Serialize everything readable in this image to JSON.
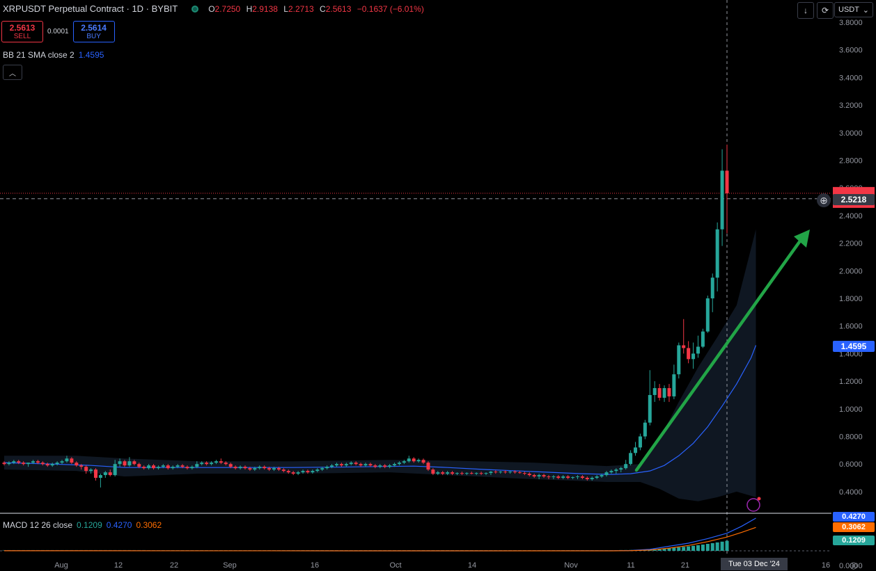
{
  "header": {
    "symbol": "XRPUSDT Perpetual Contract · 1D · BYBIT",
    "ohlc": {
      "o_key": "O",
      "o_val": "2.7250",
      "h_key": "H",
      "h_val": "2.9138",
      "l_key": "L",
      "l_val": "2.2713",
      "c_key": "C",
      "c_val": "2.5613",
      "change": "−0.1637 (−6.01%)"
    }
  },
  "trade": {
    "sell_price": "2.5613",
    "sell_label": "SELL",
    "spread": "0.0001",
    "buy_price": "2.5614",
    "buy_label": "BUY"
  },
  "indicators": {
    "bb_label": "BB 21 SMA close 2",
    "bb_value": "1.4595",
    "macd_label": "MACD 12 26 close",
    "macd_hist": "0.1209",
    "macd_line": "0.4270",
    "macd_signal": "0.3062"
  },
  "toolbar": {
    "currency": "USDT",
    "collapse_icon": "chevron-up-icon",
    "icons": [
      "arrow-down-icon",
      "sync-icon",
      "chevron-down-icon",
      "plus-circle-icon",
      "lightning-icon",
      "settings-icon"
    ]
  },
  "price_labels": {
    "crosshair": "2.5218",
    "bb_basis": "1.4595",
    "macd_line": "0.4270",
    "macd_signal": "0.3062",
    "macd_hist": "0.1209"
  },
  "crosshair_date": "Tue 03 Dec '24",
  "colors": {
    "up": "#26a69a",
    "down": "#f23645",
    "bb_basis": "#2962ff",
    "bb_fill": "#0f1722",
    "macd": "#2962ff",
    "signal": "#ff6d00",
    "arrow": "#22a547",
    "background": "#000000"
  },
  "chart_data": {
    "type": "candlestick",
    "symbol": "XRPUSDT",
    "interval": "1D",
    "y_ticks": [
      "3.8000",
      "3.6000",
      "3.4000",
      "3.2000",
      "3.0000",
      "2.8000",
      "2.6000",
      "2.4000",
      "2.2000",
      "2.0000",
      "1.8000",
      "1.6000",
      "1.4000",
      "1.2000",
      "1.0000",
      "0.8000",
      "0.6000",
      "0.4000"
    ],
    "x_ticks": [
      "Aug",
      "12",
      "22",
      "Sep",
      "16",
      "Oct",
      "14",
      "Nov",
      "11",
      "21",
      "16"
    ],
    "ylim": [
      0.32,
      3.82
    ],
    "x_start": "2024-07-26",
    "last_candle": {
      "date": "2024-12-03",
      "open": 2.725,
      "high": 2.9138,
      "low": 2.2713,
      "close": 2.5613
    },
    "candles": [
      [
        0.61,
        0.62,
        0.59,
        0.6
      ],
      [
        0.6,
        0.62,
        0.59,
        0.61
      ],
      [
        0.61,
        0.63,
        0.6,
        0.62
      ],
      [
        0.62,
        0.63,
        0.6,
        0.61
      ],
      [
        0.61,
        0.62,
        0.59,
        0.6
      ],
      [
        0.6,
        0.61,
        0.58,
        0.61
      ],
      [
        0.61,
        0.63,
        0.6,
        0.62
      ],
      [
        0.62,
        0.63,
        0.6,
        0.61
      ],
      [
        0.61,
        0.62,
        0.59,
        0.6
      ],
      [
        0.6,
        0.61,
        0.58,
        0.59
      ],
      [
        0.59,
        0.61,
        0.58,
        0.6
      ],
      [
        0.6,
        0.62,
        0.59,
        0.61
      ],
      [
        0.61,
        0.63,
        0.6,
        0.62
      ],
      [
        0.62,
        0.66,
        0.61,
        0.64
      ],
      [
        0.64,
        0.65,
        0.6,
        0.61
      ],
      [
        0.61,
        0.62,
        0.58,
        0.59
      ],
      [
        0.59,
        0.6,
        0.56,
        0.58
      ],
      [
        0.58,
        0.59,
        0.53,
        0.55
      ],
      [
        0.55,
        0.57,
        0.53,
        0.56
      ],
      [
        0.56,
        0.57,
        0.48,
        0.5
      ],
      [
        0.5,
        0.53,
        0.43,
        0.52
      ],
      [
        0.52,
        0.55,
        0.5,
        0.54
      ],
      [
        0.54,
        0.56,
        0.51,
        0.52
      ],
      [
        0.52,
        0.63,
        0.51,
        0.6
      ],
      [
        0.6,
        0.64,
        0.58,
        0.62
      ],
      [
        0.62,
        0.63,
        0.58,
        0.59
      ],
      [
        0.59,
        0.65,
        0.58,
        0.62
      ],
      [
        0.62,
        0.63,
        0.59,
        0.6
      ],
      [
        0.6,
        0.61,
        0.57,
        0.58
      ],
      [
        0.58,
        0.59,
        0.56,
        0.57
      ],
      [
        0.57,
        0.6,
        0.56,
        0.59
      ],
      [
        0.59,
        0.6,
        0.56,
        0.57
      ],
      [
        0.57,
        0.59,
        0.56,
        0.58
      ],
      [
        0.58,
        0.6,
        0.57,
        0.59
      ],
      [
        0.59,
        0.6,
        0.56,
        0.57
      ],
      [
        0.57,
        0.59,
        0.56,
        0.58
      ],
      [
        0.58,
        0.6,
        0.57,
        0.59
      ],
      [
        0.59,
        0.6,
        0.57,
        0.58
      ],
      [
        0.58,
        0.59,
        0.56,
        0.57
      ],
      [
        0.57,
        0.59,
        0.56,
        0.58
      ],
      [
        0.58,
        0.62,
        0.57,
        0.6
      ],
      [
        0.6,
        0.62,
        0.59,
        0.61
      ],
      [
        0.61,
        0.62,
        0.59,
        0.6
      ],
      [
        0.6,
        0.62,
        0.59,
        0.61
      ],
      [
        0.61,
        0.63,
        0.6,
        0.62
      ],
      [
        0.62,
        0.64,
        0.6,
        0.61
      ],
      [
        0.61,
        0.62,
        0.59,
        0.6
      ],
      [
        0.6,
        0.61,
        0.57,
        0.58
      ],
      [
        0.58,
        0.59,
        0.56,
        0.57
      ],
      [
        0.57,
        0.59,
        0.56,
        0.58
      ],
      [
        0.58,
        0.59,
        0.56,
        0.57
      ],
      [
        0.57,
        0.58,
        0.55,
        0.56
      ],
      [
        0.56,
        0.58,
        0.55,
        0.57
      ],
      [
        0.57,
        0.59,
        0.56,
        0.58
      ],
      [
        0.58,
        0.59,
        0.56,
        0.57
      ],
      [
        0.57,
        0.58,
        0.55,
        0.56
      ],
      [
        0.56,
        0.58,
        0.55,
        0.57
      ],
      [
        0.57,
        0.58,
        0.55,
        0.56
      ],
      [
        0.56,
        0.57,
        0.54,
        0.55
      ],
      [
        0.55,
        0.56,
        0.53,
        0.54
      ],
      [
        0.54,
        0.55,
        0.52,
        0.53
      ],
      [
        0.53,
        0.55,
        0.52,
        0.54
      ],
      [
        0.54,
        0.56,
        0.53,
        0.55
      ],
      [
        0.55,
        0.56,
        0.53,
        0.54
      ],
      [
        0.54,
        0.56,
        0.53,
        0.55
      ],
      [
        0.55,
        0.57,
        0.54,
        0.56
      ],
      [
        0.56,
        0.58,
        0.55,
        0.57
      ],
      [
        0.57,
        0.59,
        0.56,
        0.58
      ],
      [
        0.58,
        0.6,
        0.57,
        0.59
      ],
      [
        0.59,
        0.61,
        0.58,
        0.6
      ],
      [
        0.6,
        0.61,
        0.58,
        0.59
      ],
      [
        0.59,
        0.61,
        0.58,
        0.6
      ],
      [
        0.6,
        0.62,
        0.59,
        0.61
      ],
      [
        0.61,
        0.62,
        0.59,
        0.6
      ],
      [
        0.6,
        0.61,
        0.58,
        0.59
      ],
      [
        0.59,
        0.61,
        0.58,
        0.6
      ],
      [
        0.6,
        0.61,
        0.58,
        0.59
      ],
      [
        0.59,
        0.6,
        0.57,
        0.58
      ],
      [
        0.58,
        0.6,
        0.57,
        0.59
      ],
      [
        0.59,
        0.6,
        0.57,
        0.58
      ],
      [
        0.58,
        0.6,
        0.57,
        0.59
      ],
      [
        0.59,
        0.61,
        0.58,
        0.6
      ],
      [
        0.6,
        0.62,
        0.59,
        0.61
      ],
      [
        0.61,
        0.63,
        0.6,
        0.62
      ],
      [
        0.62,
        0.66,
        0.61,
        0.64
      ],
      [
        0.64,
        0.65,
        0.61,
        0.62
      ],
      [
        0.62,
        0.64,
        0.61,
        0.63
      ],
      [
        0.63,
        0.64,
        0.6,
        0.61
      ],
      [
        0.61,
        0.62,
        0.55,
        0.56
      ],
      [
        0.56,
        0.57,
        0.52,
        0.53
      ],
      [
        0.53,
        0.55,
        0.52,
        0.54
      ],
      [
        0.54,
        0.55,
        0.52,
        0.53
      ],
      [
        0.53,
        0.55,
        0.52,
        0.54
      ],
      [
        0.54,
        0.55,
        0.52,
        0.53
      ],
      [
        0.53,
        0.54,
        0.52,
        0.535
      ],
      [
        0.535,
        0.545,
        0.52,
        0.53
      ],
      [
        0.53,
        0.54,
        0.52,
        0.535
      ],
      [
        0.535,
        0.545,
        0.525,
        0.53
      ],
      [
        0.53,
        0.54,
        0.52,
        0.535
      ],
      [
        0.535,
        0.545,
        0.52,
        0.53
      ],
      [
        0.53,
        0.54,
        0.52,
        0.535
      ],
      [
        0.535,
        0.55,
        0.52,
        0.545
      ],
      [
        0.545,
        0.555,
        0.53,
        0.54
      ],
      [
        0.54,
        0.55,
        0.53,
        0.545
      ],
      [
        0.545,
        0.555,
        0.53,
        0.54
      ],
      [
        0.54,
        0.55,
        0.53,
        0.545
      ],
      [
        0.545,
        0.555,
        0.53,
        0.54
      ],
      [
        0.54,
        0.55,
        0.53,
        0.535
      ],
      [
        0.535,
        0.545,
        0.52,
        0.53
      ],
      [
        0.53,
        0.54,
        0.51,
        0.52
      ],
      [
        0.52,
        0.53,
        0.5,
        0.51
      ],
      [
        0.51,
        0.53,
        0.49,
        0.52
      ],
      [
        0.52,
        0.53,
        0.5,
        0.51
      ],
      [
        0.51,
        0.52,
        0.49,
        0.505
      ],
      [
        0.505,
        0.52,
        0.49,
        0.51
      ],
      [
        0.51,
        0.52,
        0.49,
        0.5
      ],
      [
        0.5,
        0.52,
        0.49,
        0.51
      ],
      [
        0.51,
        0.52,
        0.49,
        0.5
      ],
      [
        0.5,
        0.51,
        0.49,
        0.505
      ],
      [
        0.505,
        0.52,
        0.49,
        0.51
      ],
      [
        0.51,
        0.52,
        0.49,
        0.5
      ],
      [
        0.5,
        0.51,
        0.48,
        0.49
      ],
      [
        0.49,
        0.51,
        0.48,
        0.5
      ],
      [
        0.5,
        0.52,
        0.49,
        0.51
      ],
      [
        0.51,
        0.53,
        0.5,
        0.52
      ],
      [
        0.52,
        0.55,
        0.51,
        0.54
      ],
      [
        0.54,
        0.56,
        0.53,
        0.55
      ],
      [
        0.55,
        0.57,
        0.53,
        0.56
      ],
      [
        0.56,
        0.58,
        0.54,
        0.57
      ],
      [
        0.57,
        0.63,
        0.56,
        0.6
      ],
      [
        0.6,
        0.7,
        0.59,
        0.68
      ],
      [
        0.68,
        0.76,
        0.66,
        0.72
      ],
      [
        0.72,
        0.82,
        0.7,
        0.8
      ],
      [
        0.8,
        0.92,
        0.78,
        0.9
      ],
      [
        0.9,
        1.28,
        0.88,
        1.1
      ],
      [
        1.1,
        1.2,
        1.05,
        1.15
      ],
      [
        1.15,
        1.18,
        1.06,
        1.08
      ],
      [
        1.08,
        1.17,
        1.05,
        1.15
      ],
      [
        1.15,
        1.18,
        1.05,
        1.09
      ],
      [
        1.09,
        1.32,
        1.07,
        1.25
      ],
      [
        1.25,
        1.48,
        1.22,
        1.46
      ],
      [
        1.46,
        1.65,
        1.4,
        1.44
      ],
      [
        1.44,
        1.49,
        1.33,
        1.36
      ],
      [
        1.36,
        1.48,
        1.29,
        1.4
      ],
      [
        1.4,
        1.53,
        1.37,
        1.45
      ],
      [
        1.45,
        1.58,
        1.44,
        1.56
      ],
      [
        1.56,
        1.82,
        1.55,
        1.8
      ],
      [
        1.8,
        1.98,
        1.7,
        1.95
      ],
      [
        1.95,
        2.35,
        1.85,
        2.3
      ],
      [
        2.3,
        2.88,
        2.18,
        2.725
      ],
      [
        2.725,
        2.9138,
        2.2713,
        2.5613
      ]
    ],
    "bb_basis": [
      [
        0,
        0.61
      ],
      [
        10,
        0.6
      ],
      [
        18,
        0.59
      ],
      [
        25,
        0.575
      ],
      [
        40,
        0.575
      ],
      [
        60,
        0.575
      ],
      [
        70,
        0.578
      ],
      [
        85,
        0.585
      ],
      [
        92,
        0.575
      ],
      [
        100,
        0.56
      ],
      [
        110,
        0.545
      ],
      [
        120,
        0.53
      ],
      [
        126,
        0.525
      ],
      [
        130,
        0.53
      ],
      [
        134,
        0.55
      ],
      [
        137,
        0.59
      ],
      [
        140,
        0.66
      ],
      [
        143,
        0.75
      ],
      [
        146,
        0.87
      ],
      [
        149,
        1.02
      ],
      [
        152,
        1.18
      ],
      [
        155,
        1.37
      ],
      [
        156,
        1.46
      ]
    ],
    "bb_upper": [
      [
        0,
        0.66
      ],
      [
        15,
        0.66
      ],
      [
        25,
        0.64
      ],
      [
        40,
        0.62
      ],
      [
        60,
        0.62
      ],
      [
        80,
        0.63
      ],
      [
        92,
        0.625
      ],
      [
        110,
        0.61
      ],
      [
        125,
        0.585
      ],
      [
        132,
        0.6
      ],
      [
        136,
        0.78
      ],
      [
        140,
        1.05
      ],
      [
        144,
        1.3
      ],
      [
        148,
        1.52
      ],
      [
        152,
        1.75
      ],
      [
        156,
        2.3
      ]
    ],
    "bb_lower": [
      [
        0,
        0.56
      ],
      [
        15,
        0.55
      ],
      [
        25,
        0.51
      ],
      [
        40,
        0.53
      ],
      [
        60,
        0.53
      ],
      [
        80,
        0.54
      ],
      [
        92,
        0.52
      ],
      [
        110,
        0.49
      ],
      [
        125,
        0.47
      ],
      [
        132,
        0.47
      ],
      [
        136,
        0.42
      ],
      [
        140,
        0.35
      ],
      [
        144,
        0.33
      ],
      [
        148,
        0.36
      ],
      [
        152,
        0.4
      ],
      [
        156,
        0.36
      ]
    ],
    "macd": [
      [
        0,
        0.001
      ],
      [
        100,
        0.0
      ],
      [
        126,
        0.001
      ],
      [
        130,
        0.005
      ],
      [
        134,
        0.02
      ],
      [
        138,
        0.06
      ],
      [
        142,
        0.1
      ],
      [
        146,
        0.16
      ],
      [
        150,
        0.23
      ],
      [
        153,
        0.32
      ],
      [
        156,
        0.427
      ]
    ],
    "signal": [
      [
        0,
        0.001
      ],
      [
        100,
        0.0
      ],
      [
        126,
        0.0
      ],
      [
        130,
        0.002
      ],
      [
        134,
        0.01
      ],
      [
        138,
        0.035
      ],
      [
        142,
        0.07
      ],
      [
        146,
        0.12
      ],
      [
        150,
        0.18
      ],
      [
        153,
        0.24
      ],
      [
        156,
        0.3062
      ]
    ],
    "macd_hist_last": 0.1209
  }
}
